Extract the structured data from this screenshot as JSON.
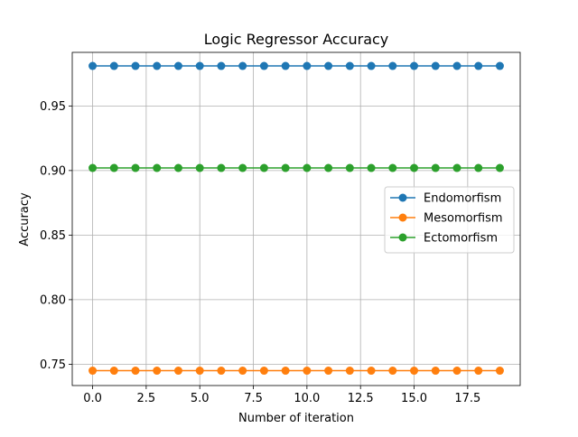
{
  "chart_data": {
    "type": "line",
    "title": "Logic Regressor Accuracy",
    "xlabel": "Number of iteration",
    "ylabel": "Accuracy",
    "x": [
      0,
      1,
      2,
      3,
      4,
      5,
      6,
      7,
      8,
      9,
      10,
      11,
      12,
      13,
      14,
      15,
      16,
      17,
      18,
      19
    ],
    "xlim": [
      -0.95,
      19.95
    ],
    "ylim": [
      0.7335,
      0.9915
    ],
    "xticks": [
      0,
      2.5,
      5,
      7.5,
      10,
      12.5,
      15,
      17.5
    ],
    "xtick_labels": [
      "0.0",
      "2.5",
      "5.0",
      "7.5",
      "10.0",
      "12.5",
      "15.0",
      "17.5"
    ],
    "yticks": [
      0.75,
      0.8,
      0.85,
      0.9,
      0.95
    ],
    "ytick_labels": [
      "0.75",
      "0.80",
      "0.85",
      "0.90",
      "0.95"
    ],
    "grid": true,
    "legend_position": "center-right",
    "series": [
      {
        "name": "Endomorfism",
        "color": "#1f77b4",
        "marker": "circle",
        "values": [
          0.981,
          0.981,
          0.981,
          0.981,
          0.981,
          0.981,
          0.981,
          0.981,
          0.981,
          0.981,
          0.981,
          0.981,
          0.981,
          0.981,
          0.981,
          0.981,
          0.981,
          0.981,
          0.981,
          0.981
        ]
      },
      {
        "name": "Mesomorfism",
        "color": "#ff7f0e",
        "marker": "circle",
        "values": [
          0.745,
          0.745,
          0.745,
          0.745,
          0.745,
          0.745,
          0.745,
          0.745,
          0.745,
          0.745,
          0.745,
          0.745,
          0.745,
          0.745,
          0.745,
          0.745,
          0.745,
          0.745,
          0.745,
          0.745
        ]
      },
      {
        "name": "Ectomorfism",
        "color": "#2ca02c",
        "marker": "circle",
        "values": [
          0.902,
          0.902,
          0.902,
          0.902,
          0.902,
          0.902,
          0.902,
          0.902,
          0.902,
          0.902,
          0.902,
          0.902,
          0.902,
          0.902,
          0.902,
          0.902,
          0.902,
          0.902,
          0.902,
          0.902
        ]
      }
    ]
  }
}
